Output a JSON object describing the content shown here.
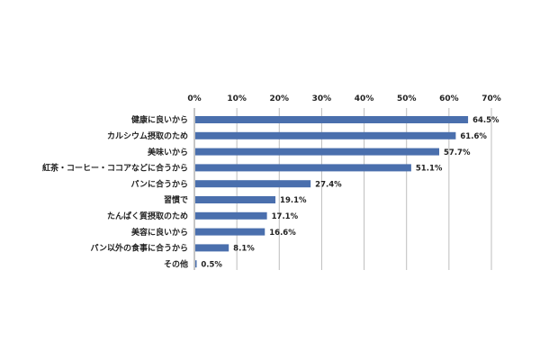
{
  "chart_data": {
    "type": "bar",
    "orientation": "horizontal",
    "categories": [
      "健康に良いから",
      "カルシウム摂取のため",
      "美味いから",
      "紅茶・コーヒー・ココアなどに合うから",
      "パンに合うから",
      "習慣で",
      "たんぱく質摂取のため",
      "美容に良いから",
      "パン以外の食事に合うから",
      "その他"
    ],
    "values": [
      64.5,
      61.6,
      57.7,
      51.1,
      27.4,
      19.1,
      17.1,
      16.6,
      8.1,
      0.5
    ],
    "data_labels": [
      "64.5%",
      "61.6%",
      "57.7%",
      "51.1%",
      "27.4%",
      "19.1%",
      "17.1%",
      "16.6%",
      "8.1%",
      "0.5%"
    ],
    "xlim": [
      0,
      70
    ],
    "x_ticks": [
      "0%",
      "10%",
      "20%",
      "30%",
      "40%",
      "50%",
      "60%",
      "70%"
    ],
    "tick_position": "top",
    "grid": true,
    "bar_color": "#4a6fad",
    "title": "",
    "xlabel": "",
    "ylabel": ""
  }
}
